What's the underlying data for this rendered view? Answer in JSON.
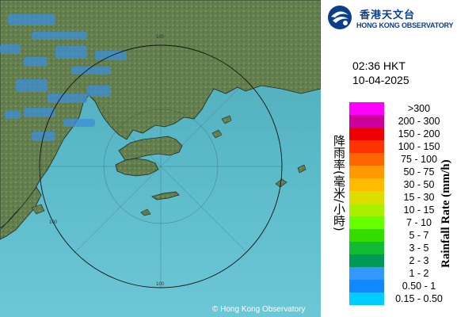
{
  "header": {
    "logo_name_cn": "香港天文台",
    "logo_name_en": "HONG KONG OBSERVATORY"
  },
  "timestamp": {
    "time": "02:36 HKT",
    "date": "10-04-2025"
  },
  "legend": {
    "axis_title_cn": "降雨率(毫米/小時)",
    "axis_title_en": "Rainfall Rate (mm/h)",
    "rows": [
      {
        "label": ">300",
        "color": "#ff00ff"
      },
      {
        "label": "200 - 300",
        "color": "#cc0099"
      },
      {
        "label": "150 - 200",
        "color": "#ee0000"
      },
      {
        "label": "100 - 150",
        "color": "#ff3300"
      },
      {
        "label": "75 - 100",
        "color": "#ff6600"
      },
      {
        "label": "50 - 75",
        "color": "#ff9900"
      },
      {
        "label": "30 - 50",
        "color": "#ffbb00"
      },
      {
        "label": "15 - 30",
        "color": "#dddd00"
      },
      {
        "label": "10 - 15",
        "color": "#aaee00"
      },
      {
        "label": "7 - 10",
        "color": "#66ff00"
      },
      {
        "label": "5 - 7",
        "color": "#33dd00"
      },
      {
        "label": "3 - 5",
        "color": "#11bb33"
      },
      {
        "label": "2 - 3",
        "color": "#009955"
      },
      {
        "label": "1 - 2",
        "color": "#3399ff"
      },
      {
        "label": "0.50 - 1",
        "color": "#1188ff"
      },
      {
        "label": "0.15 - 0.50",
        "color": "#00ccff"
      }
    ]
  },
  "map": {
    "range_label": "100",
    "copyright": "© Hong Kong Observatory",
    "sea_color": "#58b6c4",
    "land_color": "#5d7a4a"
  }
}
